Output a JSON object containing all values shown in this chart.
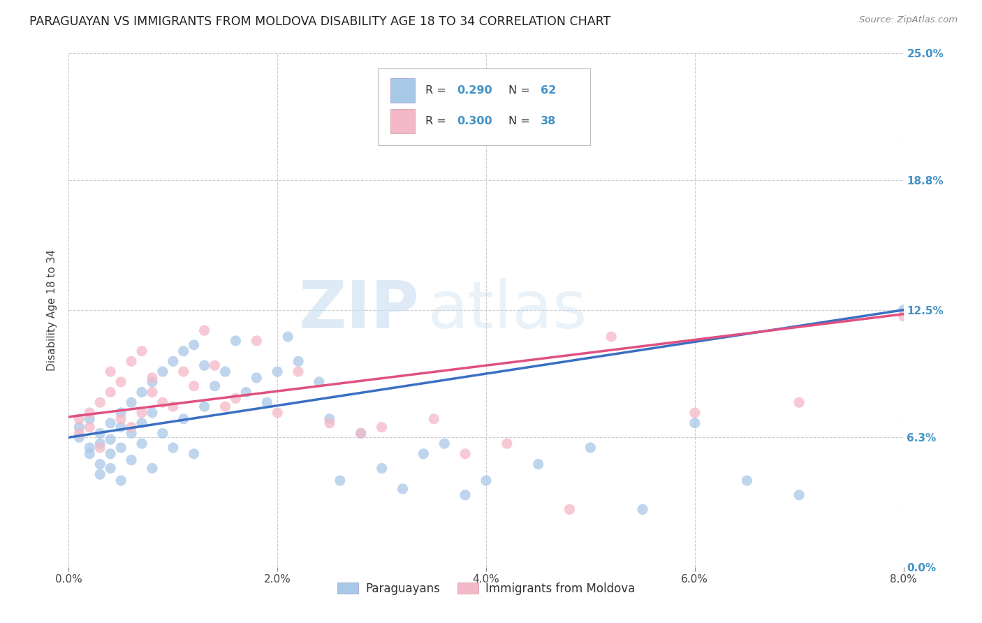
{
  "title": "PARAGUAYAN VS IMMIGRANTS FROM MOLDOVA DISABILITY AGE 18 TO 34 CORRELATION CHART",
  "source": "Source: ZipAtlas.com",
  "xlabel_ticks": [
    "0.0%",
    "2.0%",
    "4.0%",
    "6.0%",
    "8.0%"
  ],
  "xlabel_tick_vals": [
    0.0,
    0.02,
    0.04,
    0.06,
    0.08
  ],
  "ylabel": "Disability Age 18 to 34",
  "ylabel_ticks": [
    "0.0%",
    "6.3%",
    "12.5%",
    "18.8%",
    "25.0%"
  ],
  "ylabel_tick_vals": [
    0.0,
    0.063,
    0.125,
    0.188,
    0.25
  ],
  "xlim": [
    0.0,
    0.08
  ],
  "ylim": [
    0.0,
    0.25
  ],
  "paraguayan_R": 0.29,
  "paraguayan_N": 62,
  "moldova_R": 0.3,
  "moldova_N": 38,
  "blue_color": "#a8c8e8",
  "pink_color": "#f4b8c8",
  "blue_line_color": "#3a6fc4",
  "pink_line_color": "#e05080",
  "legend_label_blue": "Paraguayans",
  "legend_label_pink": "Immigrants from Moldova",
  "watermark_zip": "ZIP",
  "watermark_atlas": "atlas",
  "paraguayan_x": [
    0.001,
    0.001,
    0.002,
    0.002,
    0.002,
    0.003,
    0.003,
    0.003,
    0.003,
    0.004,
    0.004,
    0.004,
    0.004,
    0.005,
    0.005,
    0.005,
    0.005,
    0.006,
    0.006,
    0.006,
    0.007,
    0.007,
    0.007,
    0.008,
    0.008,
    0.008,
    0.009,
    0.009,
    0.01,
    0.01,
    0.011,
    0.011,
    0.012,
    0.012,
    0.013,
    0.013,
    0.014,
    0.015,
    0.016,
    0.017,
    0.018,
    0.019,
    0.02,
    0.021,
    0.022,
    0.024,
    0.025,
    0.026,
    0.028,
    0.03,
    0.032,
    0.034,
    0.036,
    0.038,
    0.04,
    0.045,
    0.05,
    0.055,
    0.06,
    0.065,
    0.07,
    0.08
  ],
  "paraguayan_y": [
    0.068,
    0.063,
    0.058,
    0.072,
    0.055,
    0.065,
    0.06,
    0.05,
    0.045,
    0.07,
    0.062,
    0.048,
    0.055,
    0.075,
    0.068,
    0.058,
    0.042,
    0.08,
    0.065,
    0.052,
    0.085,
    0.07,
    0.06,
    0.09,
    0.075,
    0.048,
    0.095,
    0.065,
    0.1,
    0.058,
    0.105,
    0.072,
    0.108,
    0.055,
    0.098,
    0.078,
    0.088,
    0.095,
    0.11,
    0.085,
    0.092,
    0.08,
    0.095,
    0.112,
    0.1,
    0.09,
    0.072,
    0.042,
    0.065,
    0.048,
    0.038,
    0.055,
    0.06,
    0.035,
    0.042,
    0.05,
    0.058,
    0.028,
    0.07,
    0.042,
    0.035,
    0.125
  ],
  "moldova_x": [
    0.001,
    0.001,
    0.002,
    0.002,
    0.003,
    0.003,
    0.004,
    0.004,
    0.005,
    0.005,
    0.006,
    0.006,
    0.007,
    0.007,
    0.008,
    0.008,
    0.009,
    0.01,
    0.011,
    0.012,
    0.013,
    0.014,
    0.015,
    0.016,
    0.018,
    0.02,
    0.022,
    0.025,
    0.028,
    0.03,
    0.035,
    0.038,
    0.042,
    0.048,
    0.052,
    0.06,
    0.07,
    0.08
  ],
  "moldova_y": [
    0.065,
    0.072,
    0.068,
    0.075,
    0.08,
    0.058,
    0.085,
    0.095,
    0.09,
    0.072,
    0.1,
    0.068,
    0.105,
    0.075,
    0.085,
    0.092,
    0.08,
    0.078,
    0.095,
    0.088,
    0.115,
    0.098,
    0.078,
    0.082,
    0.11,
    0.075,
    0.095,
    0.07,
    0.065,
    0.068,
    0.072,
    0.055,
    0.06,
    0.028,
    0.112,
    0.075,
    0.08,
    0.122
  ]
}
